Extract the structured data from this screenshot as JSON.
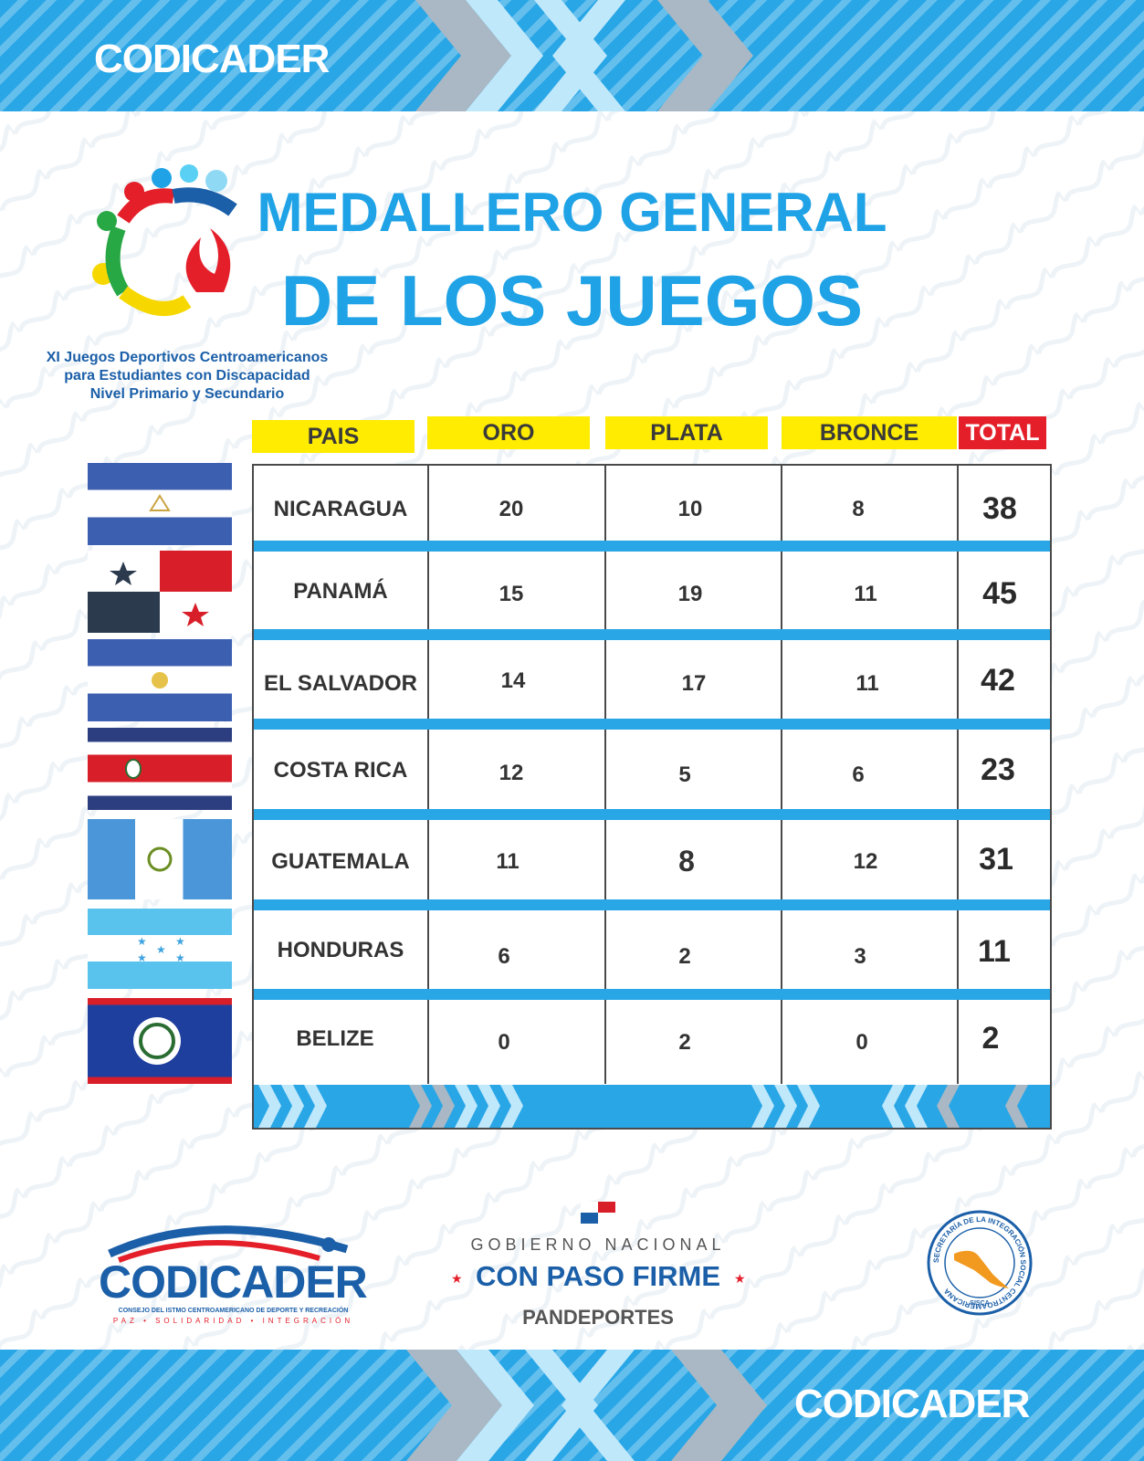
{
  "brand": {
    "name": "CODICADER"
  },
  "header": {
    "title_line1": "MEDALLERO GENERAL",
    "title_line2": "DE LOS JUEGOS"
  },
  "event": {
    "line1": "XI Juegos Deportivos Centroamericanos",
    "line2": "para Estudiantes con Discapacidad",
    "line3": "Nivel Primario y Secundario"
  },
  "table": {
    "columns": [
      "PAIS",
      "ORO",
      "PLATA",
      "BRONCE",
      "TOTAL"
    ],
    "rows": [
      {
        "pais": "NICARAGUA",
        "oro": "20",
        "plata": "10",
        "bronce": "8",
        "total": "38"
      },
      {
        "pais": "PANAMÁ",
        "oro": "15",
        "plata": "19",
        "bronce": "11",
        "total": "45"
      },
      {
        "pais": "EL SALVADOR",
        "oro": "14",
        "plata": "17",
        "bronce": "11",
        "total": "42"
      },
      {
        "pais": "COSTA RICA",
        "oro": "12",
        "plata": "5",
        "bronce": "6",
        "total": "23"
      },
      {
        "pais": "GUATEMALA",
        "oro": "11",
        "plata": "8",
        "bronce": "12",
        "total": "31"
      },
      {
        "pais": "HONDURAS",
        "oro": "6",
        "plata": "2",
        "bronce": "3",
        "total": "11"
      },
      {
        "pais": "BELIZE",
        "oro": "0",
        "plata": "2",
        "bronce": "0",
        "total": "2"
      }
    ]
  },
  "footer": {
    "codicader_name": "CODICADER",
    "codicader_subtitle": "CONSEJO DEL ISTMO CENTROAMERICANO DE DEPORTE Y RECREACIÓN",
    "codicader_motto": "PAZ • SOLIDARIDAD • INTEGRACIÓN",
    "gobierno_line1": "GOBIERNO NACIONAL",
    "gobierno_line2": "CON PASO FIRME",
    "gobierno_line3": "PANDEPORTES",
    "sisca_text": "SECRETARÍA DE LA INTEGRACIÓN SOCIAL CENTROAMERICANA",
    "sisca_acronym": "SISCA"
  },
  "colors": {
    "accent_blue": "#1fa3e6",
    "band_blue": "#29a6e6",
    "header_yellow": "#ffec00",
    "total_red": "#e41f2a",
    "dark_blue": "#1b5fa8"
  }
}
